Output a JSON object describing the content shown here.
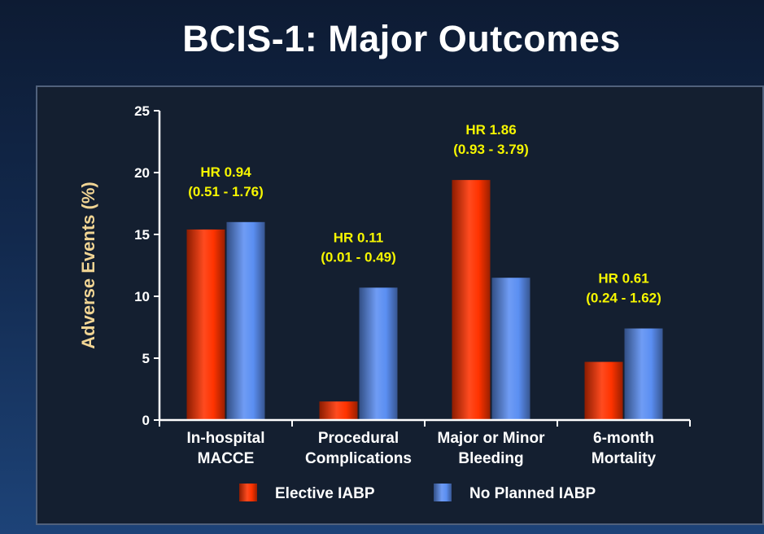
{
  "slide": {
    "title": "BCIS-1: Major Outcomes"
  },
  "chart_data": {
    "type": "bar",
    "title": "",
    "xlabel": "",
    "ylabel": "Adverse Events (%)",
    "ylim": [
      0,
      25
    ],
    "yticks": [
      0,
      5,
      10,
      15,
      20,
      25
    ],
    "grid": false,
    "legend_position": "bottom",
    "categories": [
      [
        "In-hospital",
        "MACCE"
      ],
      [
        "Procedural",
        "Complications"
      ],
      [
        "Major or Minor",
        "Bleeding"
      ],
      [
        "6-month",
        "Mortality"
      ]
    ],
    "series": [
      {
        "name": "Elective IABP",
        "color": "#ff3300",
        "values": [
          15.4,
          1.5,
          19.4,
          4.7
        ]
      },
      {
        "name": "No Planned IABP",
        "color": "#5b8ff2",
        "values": [
          16.0,
          10.7,
          11.5,
          7.4
        ]
      }
    ],
    "annotations": [
      {
        "category_index": 0,
        "lines": [
          "HR 0.94",
          "(0.51 - 1.76)"
        ]
      },
      {
        "category_index": 1,
        "lines": [
          "HR 0.11",
          "(0.01 - 0.49)"
        ]
      },
      {
        "category_index": 2,
        "lines": [
          "HR 1.86",
          "(0.93 - 3.79)"
        ]
      },
      {
        "category_index": 3,
        "lines": [
          "HR 0.61",
          "(0.24 - 1.62)"
        ]
      }
    ],
    "annotation_color": "#f6f600"
  }
}
